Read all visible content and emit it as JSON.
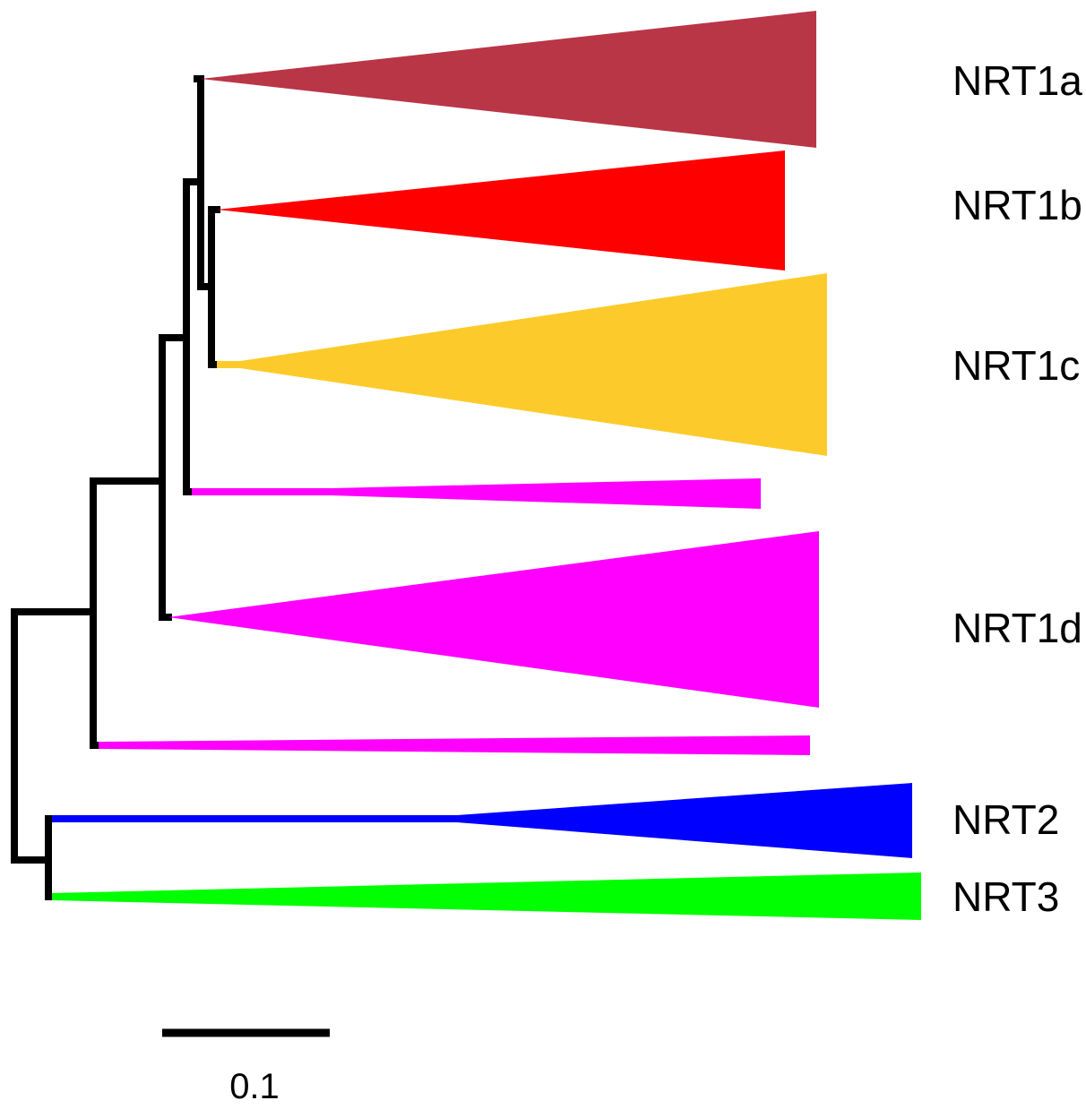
{
  "clades": [
    {
      "id": "nrt1a",
      "label": "NRT1a",
      "color": "#B93647"
    },
    {
      "id": "nrt1b",
      "label": "NRT1b",
      "color": "#FF0000"
    },
    {
      "id": "nrt1c",
      "label": "NRT1c",
      "color": "#FCCB2B"
    },
    {
      "id": "nrt1d-upper",
      "label": "",
      "color": "#FF00FF"
    },
    {
      "id": "nrt1d",
      "label": "NRT1d",
      "color": "#FF00FF"
    },
    {
      "id": "nrt1d-lower",
      "label": "",
      "color": "#FF00FF"
    },
    {
      "id": "nrt2",
      "label": "NRT2",
      "color": "#0000FF"
    },
    {
      "id": "nrt3",
      "label": "NRT3",
      "color": "#00FF00"
    }
  ],
  "scale_bar": {
    "label": "0.1"
  }
}
